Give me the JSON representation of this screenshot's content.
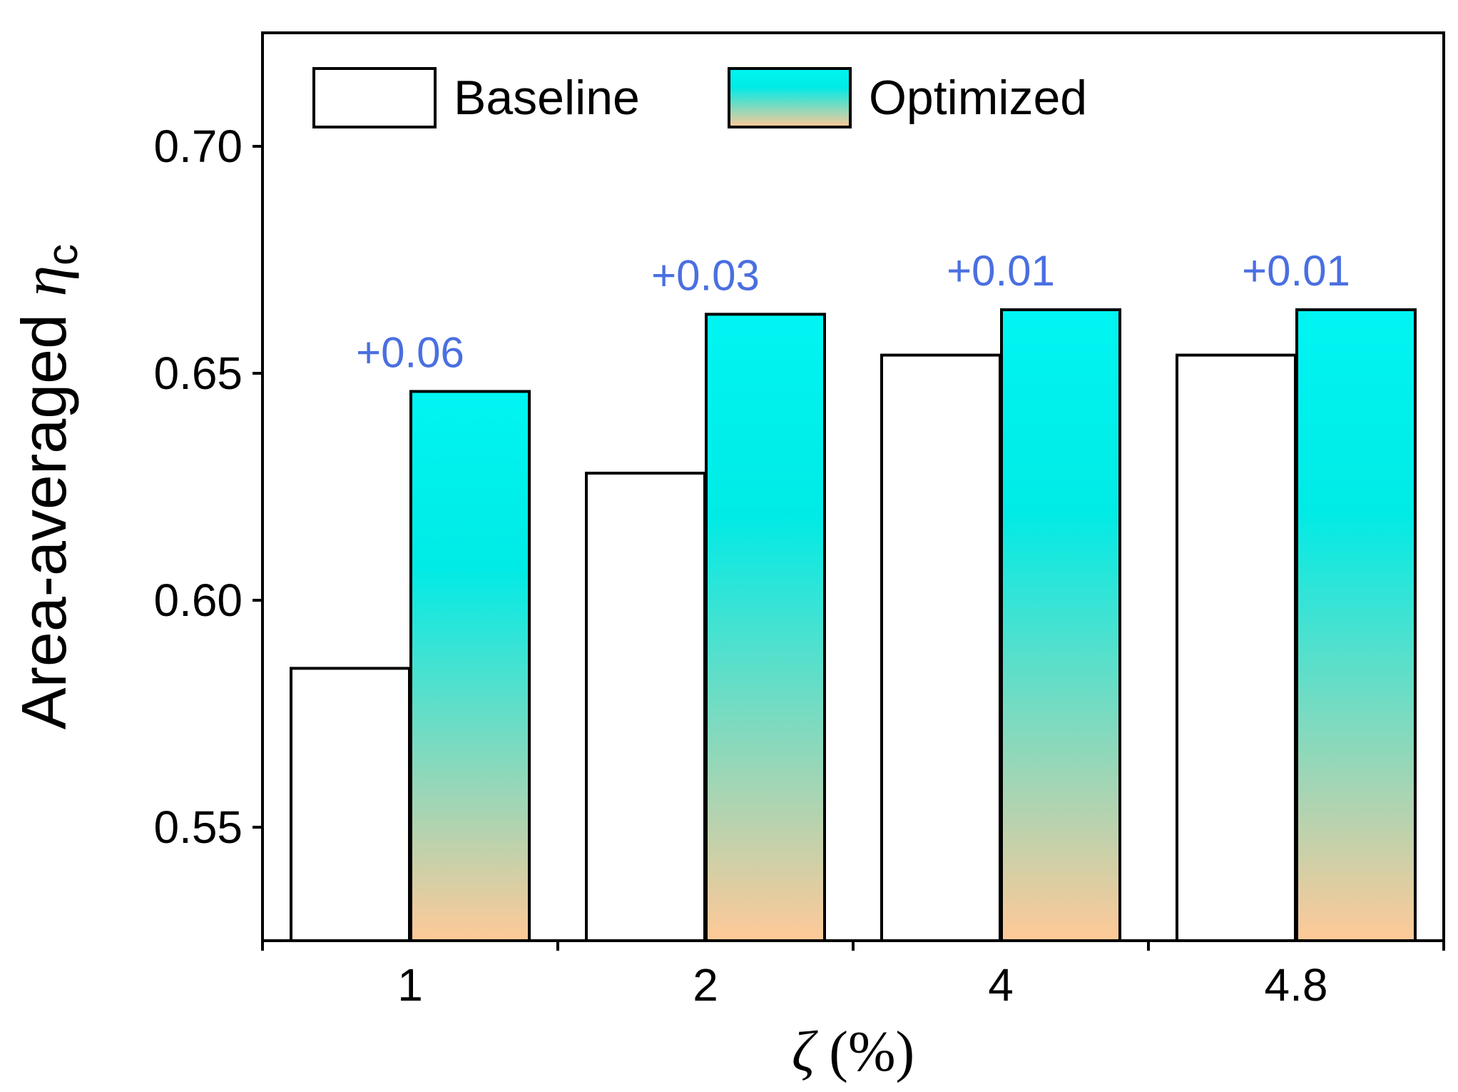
{
  "chart_data": {
    "type": "bar",
    "categories": [
      "1",
      "2",
      "4",
      "4.8"
    ],
    "series": [
      {
        "name": "Baseline",
        "values": [
          0.585,
          0.628,
          0.654,
          0.654
        ]
      },
      {
        "name": "Optimized",
        "values": [
          0.646,
          0.663,
          0.664,
          0.664
        ]
      }
    ],
    "annotations": [
      "+0.06",
      "+0.03",
      "+0.01",
      "+0.01"
    ],
    "ylim": [
      0.525,
      0.725
    ],
    "yticks": [
      0.55,
      0.6,
      0.65,
      0.7
    ],
    "ytick_labels": [
      "0.55",
      "0.60",
      "0.65",
      "0.70"
    ],
    "ylabel": {
      "text": "Area-averaged ",
      "symbol": "η",
      "subscript": "c"
    },
    "xlabel": {
      "symbol": "ζ",
      "text": " (%)"
    },
    "legend": {
      "position": "top-left",
      "entries": [
        "Baseline",
        "Optimized"
      ]
    },
    "colors": {
      "baseline_fill": "#ffffff",
      "optimized_top": "#00f5f2",
      "optimized_mid": "#00ebe6",
      "optimized_bottom": "#ffc998",
      "annotation": "#4a6fe0",
      "axis": "#000000"
    },
    "grid": false
  }
}
